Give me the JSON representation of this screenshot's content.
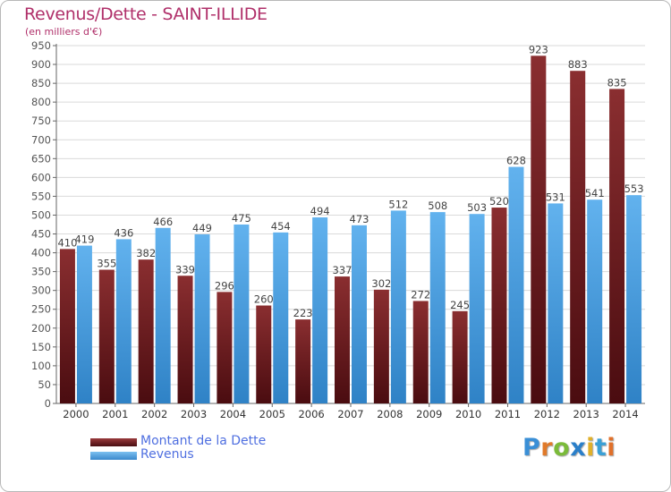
{
  "header": {
    "title": "Revenus/Dette - SAINT-ILLIDE",
    "subtitle": "(en milliers d'€)"
  },
  "colors": {
    "dette": "#7a2426",
    "revenus": "#55a8e8",
    "title": "#b0306a",
    "legend_text": "#4f6fe0"
  },
  "chart_data": {
    "type": "bar",
    "title": "Revenus/Dette - SAINT-ILLIDE",
    "subtitle": "(en milliers d'€)",
    "categories": [
      "2000",
      "2001",
      "2002",
      "2003",
      "2004",
      "2005",
      "2006",
      "2007",
      "2008",
      "2009",
      "2010",
      "2011",
      "2012",
      "2013",
      "2014"
    ],
    "series": [
      {
        "name": "Montant de la Dette",
        "color": "#7a2426",
        "values": [
          410,
          355,
          382,
          339,
          296,
          260,
          223,
          337,
          302,
          272,
          245,
          520,
          923,
          883,
          835
        ]
      },
      {
        "name": "Revenus",
        "color": "#55a8e8",
        "values": [
          419,
          436,
          466,
          449,
          475,
          454,
          494,
          473,
          512,
          508,
          503,
          628,
          531,
          541,
          553
        ]
      }
    ],
    "yticks": [
      0,
      50,
      100,
      150,
      200,
      250,
      300,
      350,
      400,
      450,
      500,
      550,
      600,
      650,
      700,
      750,
      800,
      850,
      900,
      950
    ],
    "ylim": [
      0,
      950
    ],
    "grid": true,
    "legend": "bottom-left"
  },
  "legend": {
    "items": [
      {
        "label": "Montant de la Dette"
      },
      {
        "label": "Revenus"
      }
    ]
  },
  "logo": {
    "letters": [
      "P",
      "r",
      "o",
      "x",
      "i",
      "t",
      "i"
    ],
    "colors": [
      "#3a8fd6",
      "#e07a2a",
      "#7bbb3a",
      "#2a7fc9",
      "#e0b02a",
      "#3aa0d6",
      "#e0702a"
    ]
  }
}
